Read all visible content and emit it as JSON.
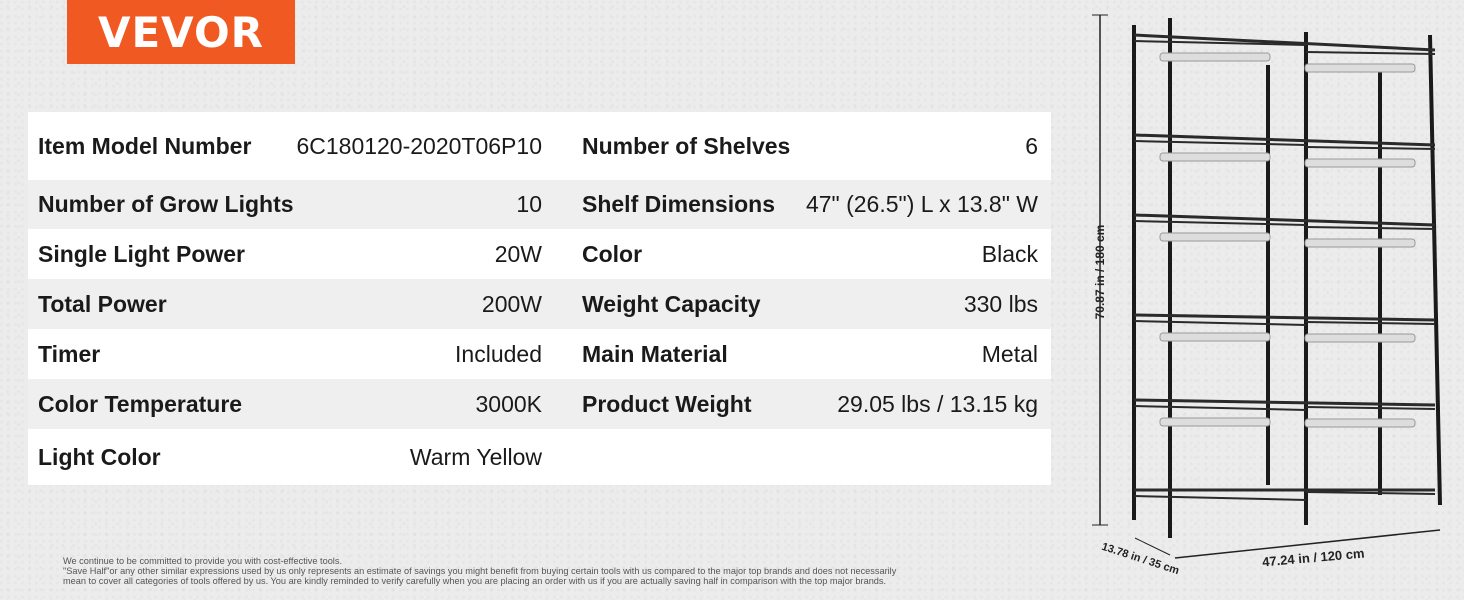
{
  "brand": "VEVOR",
  "specs_left": [
    {
      "label": "Item Model Number",
      "value": "6C180120-2020T06P10"
    },
    {
      "label": "Number of Grow Lights",
      "value": "10"
    },
    {
      "label": "Single Light Power",
      "value": "20W"
    },
    {
      "label": "Total Power",
      "value": "200W"
    },
    {
      "label": "Timer",
      "value": "Included"
    },
    {
      "label": "Color Temperature",
      "value": "3000K"
    },
    {
      "label": "Light Color",
      "value": "Warm Yellow"
    }
  ],
  "specs_right": [
    {
      "label": "Number of Shelves",
      "value": "6"
    },
    {
      "label": "Shelf Dimensions",
      "value": "47\" (26.5\") L x 13.8\" W"
    },
    {
      "label": "Color",
      "value": "Black"
    },
    {
      "label": "Weight Capacity",
      "value": "330 lbs"
    },
    {
      "label": "Main Material",
      "value": "Metal"
    },
    {
      "label": "Product Weight",
      "value": "29.05 lbs / 13.15 kg"
    }
  ],
  "dimensions": {
    "height": "70.87 in / 180 cm",
    "depth": "13.78 in / 35 cm",
    "width": "47.24 in / 120 cm"
  },
  "disclaimer": [
    "We continue to be committed to provide you with cost-effective tools.",
    "\"Save Half\"or any other similar expressions used by us only represents an estimate of savings you might benefit from buying certain tools with us compared to the major top brands and does not necessarily",
    "mean to cover all categories of tools offered by us. You are kindly reminded to verify carefully when you are placing an order with us if you are actually saving half in comparison with the top major brands."
  ],
  "colors": {
    "brand": "#f05a22"
  }
}
